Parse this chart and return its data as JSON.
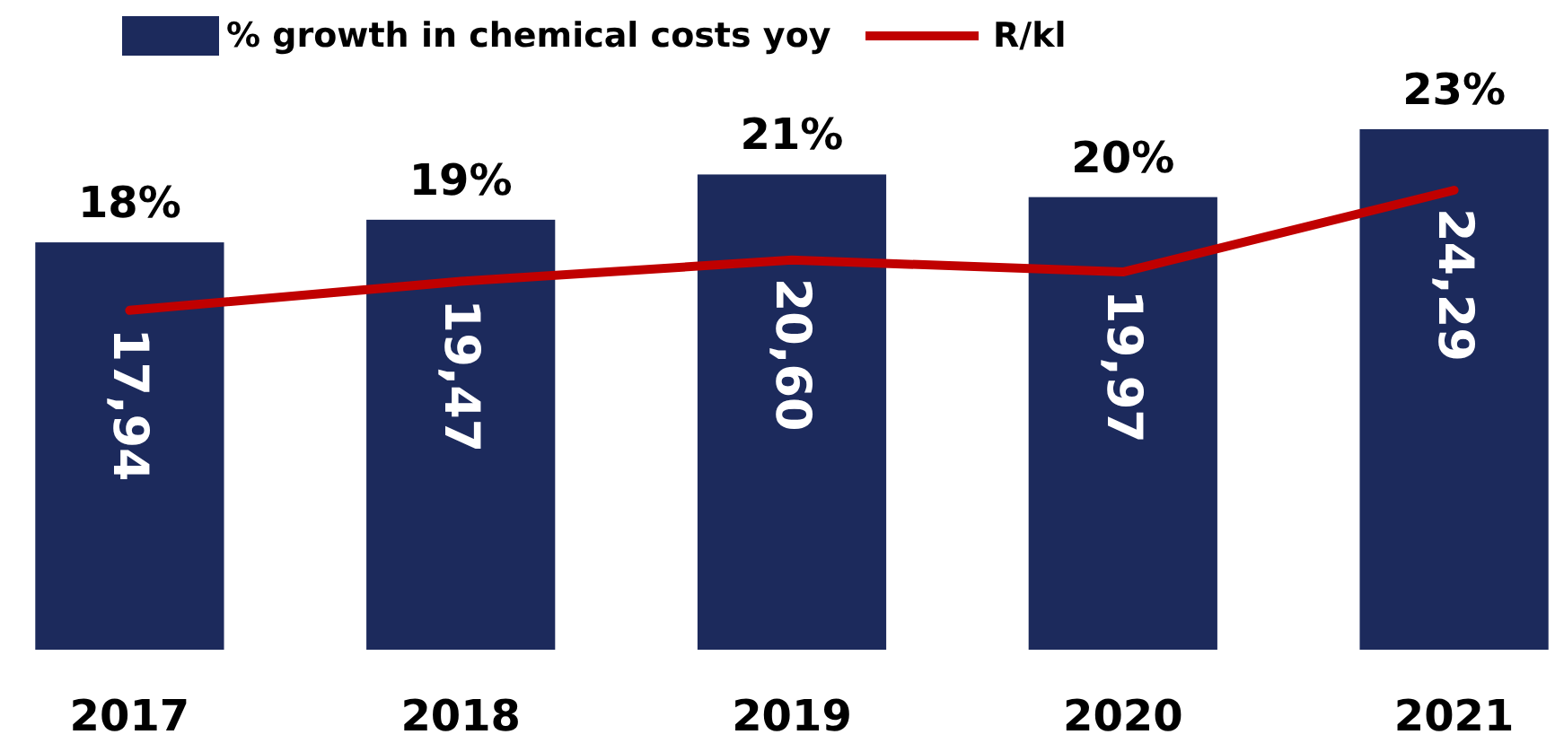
{
  "chart_data": {
    "type": "bar",
    "categories": [
      "2017",
      "2018",
      "2019",
      "2020",
      "2021"
    ],
    "series": [
      {
        "name": "% growth in chemical costs yoy",
        "color": "#1c2a5c",
        "values": [
          18,
          19,
          21,
          20,
          23
        ],
        "value_labels": [
          "18%",
          "19%",
          "21%",
          "20%",
          "23%"
        ]
      },
      {
        "name": "R/kl",
        "type": "line",
        "axis": "y2",
        "color": "#c00000",
        "values": [
          17.94,
          19.47,
          20.6,
          19.97,
          24.29
        ],
        "value_labels": [
          "17,94",
          "19,47",
          "20,60",
          "19,97",
          "24,29"
        ]
      }
    ],
    "tick_labels": "x",
    "legend": "top",
    "grid": false,
    "marker": "none",
    "line_style": "solid"
  }
}
